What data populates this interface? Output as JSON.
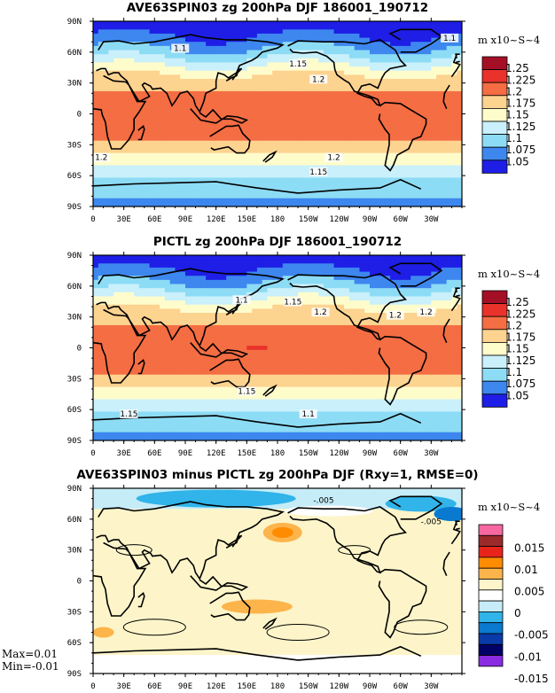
{
  "chart_data": [
    {
      "type": "heatmap",
      "title": "AVE63SPIN03 zg 200hPa DJF 186001_190712",
      "units": "m x10~S~4",
      "x_ticks": [
        "0",
        "30E",
        "60E",
        "90E",
        "120E",
        "150E",
        "180",
        "150W",
        "120W",
        "90W",
        "60W",
        "30W"
      ],
      "y_ticks": [
        "90N",
        "60N",
        "30N",
        "0",
        "30S",
        "60S",
        "90S"
      ],
      "legend_levels": [
        "1.25",
        "1.225",
        "1.2",
        "1.175",
        "1.15",
        "1.125",
        "1.1",
        "1.075",
        "1.05"
      ],
      "legend_colors": [
        "#a50f26",
        "#e8322a",
        "#f46d43",
        "#fdd390",
        "#fffccc",
        "#c9f0fb",
        "#8ddcf5",
        "#3d87ef",
        "#1e1ee6"
      ],
      "contour_labels": [
        "1.1",
        "1.15",
        "1.2",
        "1.2",
        "1.2",
        "1.15",
        "1.1"
      ],
      "lat_profile": {
        "lat": [
          90,
          80,
          70,
          60,
          50,
          40,
          30,
          20,
          10,
          0,
          -10,
          -20,
          -30,
          -40,
          -50,
          -60,
          -70,
          -80,
          -90
        ],
        "zg": [
          1.06,
          1.07,
          1.085,
          1.11,
          1.14,
          1.17,
          1.19,
          1.205,
          1.215,
          1.22,
          1.215,
          1.205,
          1.195,
          1.17,
          1.145,
          1.125,
          1.11,
          1.1,
          1.095
        ]
      }
    },
    {
      "type": "heatmap",
      "title": "PICTL zg 200hPa DJF 186001_190712",
      "units": "m x10~S~4",
      "x_ticks": [
        "0",
        "30E",
        "60E",
        "90E",
        "120E",
        "150E",
        "180",
        "150W",
        "120W",
        "90W",
        "60W",
        "30W"
      ],
      "y_ticks": [
        "90N",
        "60N",
        "30N",
        "0",
        "30S",
        "60S",
        "90S"
      ],
      "legend_levels": [
        "1.25",
        "1.225",
        "1.2",
        "1.175",
        "1.15",
        "1.125",
        "1.1",
        "1.075",
        "1.05"
      ],
      "legend_colors": [
        "#a50f26",
        "#e8322a",
        "#f46d43",
        "#fdd390",
        "#fffccc",
        "#c9f0fb",
        "#8ddcf5",
        "#3d87ef",
        "#1e1ee6"
      ],
      "contour_labels": [
        "1.1",
        "1.15",
        "1.2",
        "1.2",
        "1.2",
        "1.15",
        "1.15",
        "1.1"
      ],
      "lat_profile": {
        "lat": [
          90,
          80,
          70,
          60,
          50,
          40,
          30,
          20,
          10,
          0,
          -10,
          -20,
          -30,
          -40,
          -50,
          -60,
          -70,
          -80,
          -90
        ],
        "zg": [
          1.06,
          1.07,
          1.085,
          1.11,
          1.14,
          1.17,
          1.19,
          1.205,
          1.21,
          1.215,
          1.21,
          1.205,
          1.195,
          1.17,
          1.145,
          1.125,
          1.11,
          1.1,
          1.095
        ]
      }
    },
    {
      "type": "heatmap",
      "title": "AVE63SPIN03 minus PICTL zg 200hPa DJF (Rxy=1, RMSE=0)",
      "units": "m x10~S~4",
      "x_ticks": [
        "0",
        "30E",
        "60E",
        "90E",
        "120E",
        "150E",
        "180",
        "150W",
        "120W",
        "90W",
        "60W",
        "30W"
      ],
      "y_ticks": [
        "90N",
        "60N",
        "30N",
        "0",
        "30S",
        "60S",
        "90S"
      ],
      "legend_levels": [
        "0.015",
        "0.01",
        "0.005",
        "0",
        "-0.005",
        "-0.01",
        "-0.015"
      ],
      "legend_colors": [
        "#f768a1",
        "#9b2a2a",
        "#e8241b",
        "#ff8c00",
        "#fdb44b",
        "#fdf5c9",
        "#ffffff",
        "#c6ecf8",
        "#30b4e9",
        "#0a7ad0",
        "#0a3aa8",
        "#000066",
        "#8a2be2"
      ],
      "contour_labels": [
        "-.005",
        "-.005"
      ],
      "max_label": "Max=0.01",
      "min_label": "Min=-0.01"
    }
  ]
}
